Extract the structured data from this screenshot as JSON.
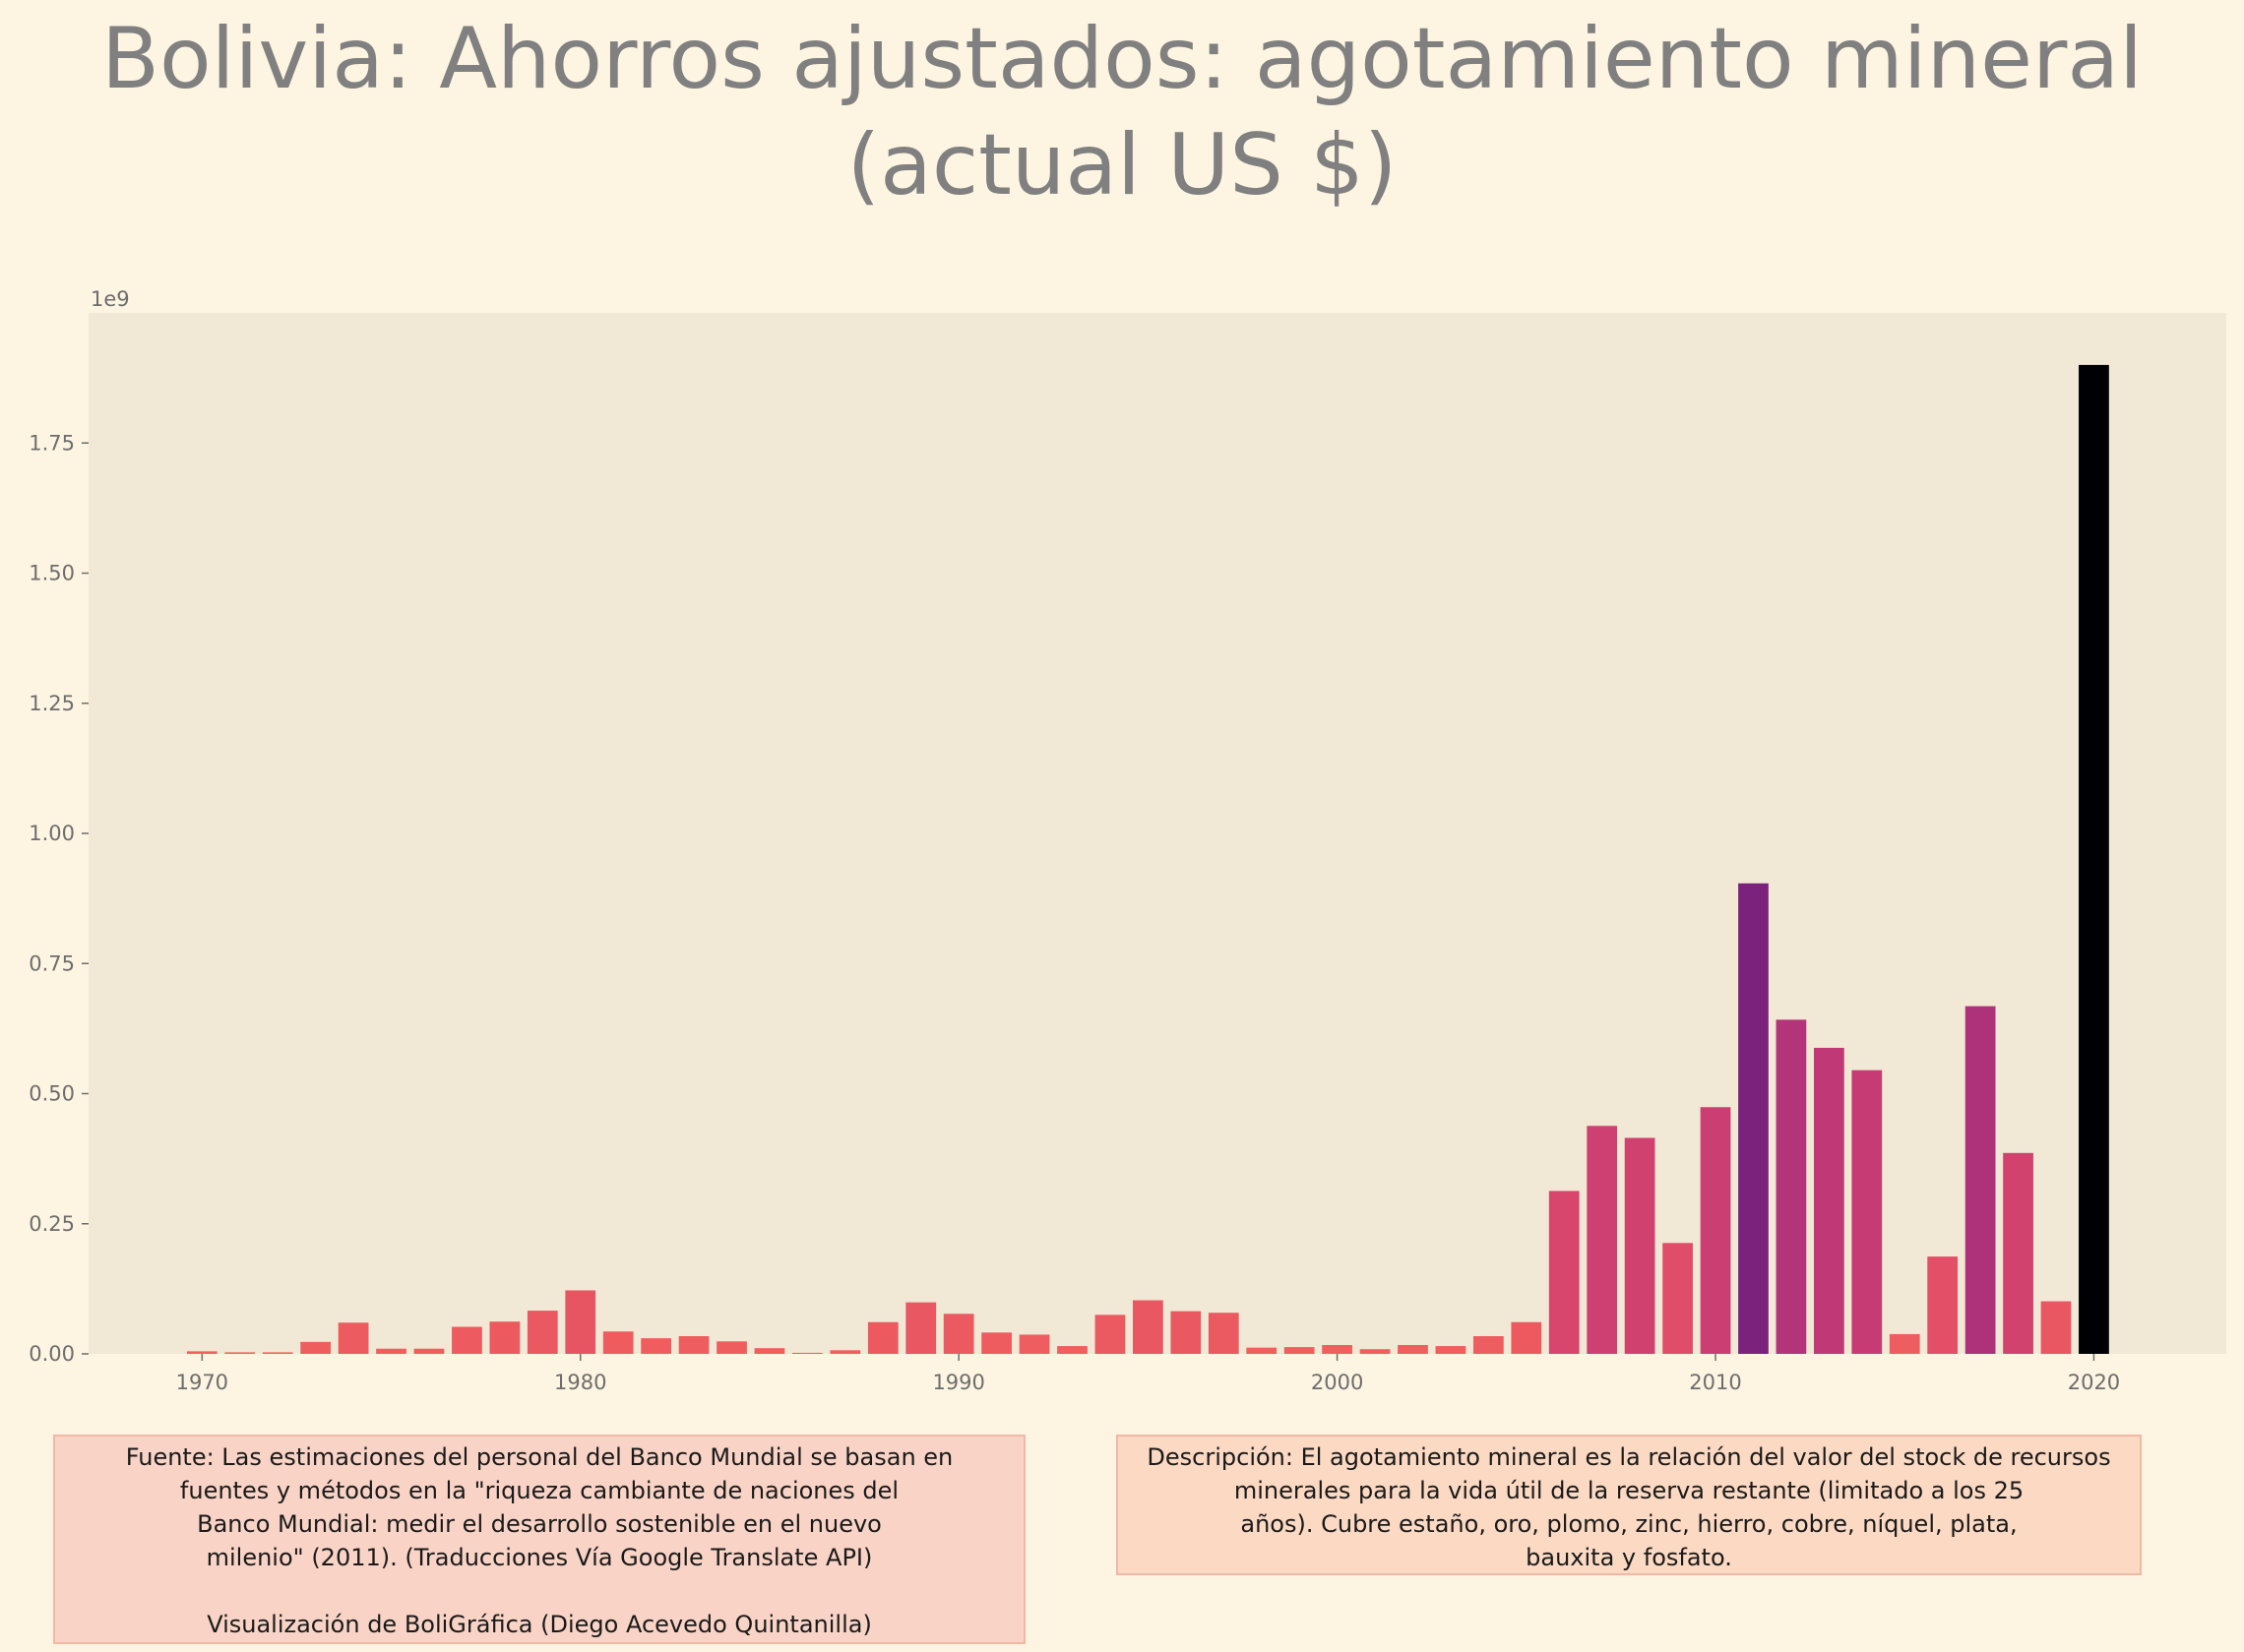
{
  "title_lines": [
    "Bolivia:  Ahorros ajustados: agotamiento mineral",
    "(actual US $)"
  ],
  "chart_data": {
    "type": "bar",
    "title": "Bolivia:  Ahorros ajustados: agotamiento mineral (actual US $)",
    "xlabel": "",
    "ylabel": "",
    "y_offset_label": "1e9",
    "x_ticks": [
      1970,
      1980,
      1990,
      2000,
      2010,
      2020
    ],
    "y_ticks": [
      "0.00",
      "0.25",
      "0.50",
      "0.75",
      "1.00",
      "1.25",
      "1.50",
      "1.75"
    ],
    "xlim": [
      1967,
      2023.5
    ],
    "ylim": [
      0,
      2.0
    ],
    "grid": false,
    "legend": "none",
    "colormap": "magma (color scaled by value)",
    "value_unit": "1e9 US $",
    "x": [
      1970,
      1971,
      1972,
      1973,
      1974,
      1975,
      1976,
      1977,
      1978,
      1979,
      1980,
      1981,
      1982,
      1983,
      1984,
      1985,
      1986,
      1987,
      1988,
      1989,
      1990,
      1991,
      1992,
      1993,
      1994,
      1995,
      1996,
      1997,
      1998,
      1999,
      2000,
      2001,
      2002,
      2003,
      2004,
      2005,
      2006,
      2007,
      2008,
      2009,
      2010,
      2011,
      2012,
      2013,
      2014,
      2015,
      2016,
      2017,
      2018,
      2019,
      2020
    ],
    "values": [
      0.005,
      0.003,
      0.003,
      0.023,
      0.06,
      0.01,
      0.01,
      0.052,
      0.062,
      0.083,
      0.122,
      0.043,
      0.03,
      0.034,
      0.024,
      0.011,
      0.002,
      0.007,
      0.061,
      0.099,
      0.077,
      0.041,
      0.037,
      0.015,
      0.075,
      0.103,
      0.082,
      0.079,
      0.012,
      0.013,
      0.017,
      0.009,
      0.017,
      0.015,
      0.034,
      0.061,
      0.313,
      0.438,
      0.415,
      0.213,
      0.474,
      0.904,
      0.642,
      0.588,
      0.545,
      0.038,
      0.187,
      0.668,
      0.386,
      0.101,
      1.9
    ]
  },
  "source_text": {
    "lines": [
      "Fuente: Las estimaciones del personal del Banco Mundial se basan en",
      "fuentes y métodos en la \"riqueza cambiante de naciones del",
      "Banco Mundial: medir el desarrollo sostenible en el nuevo",
      "milenio\" (2011). (Traducciones Vía Google Translate API)"
    ],
    "credit": "Visualización de BoliGráfica (Diego Acevedo Quintanilla)"
  },
  "description_text": {
    "lines": [
      "Descripción: El agotamiento mineral es la relación del valor del stock de recursos",
      "minerales para la vida útil de la reserva restante (limitado a los 25",
      "años). Cubre estaño, oro, plomo, zinc, hierro, cobre, níquel, plata,",
      "bauxita y fosfato."
    ]
  },
  "colors": {
    "background": "#fdf5e2",
    "plot_background": "#f1e9d5",
    "title": "#808080",
    "tick_text": "#6d6d6d"
  }
}
